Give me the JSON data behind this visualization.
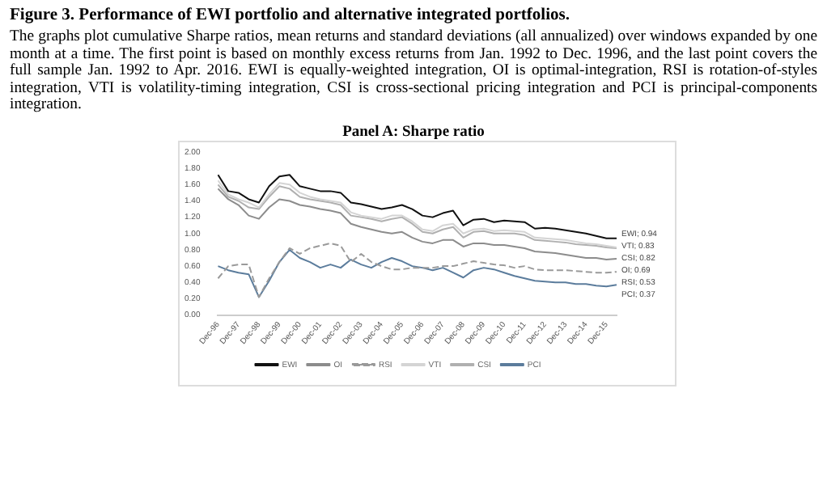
{
  "chart_data": {
    "type": "line",
    "title": "Figure 3. Performance of EWI portfolio and alternative integrated portfolios.",
    "subtitle": "The graphs plot cumulative Sharpe ratios, mean returns and standard deviations (all annualized) over windows expanded by one month at a time. The first point is based on monthly excess returns from Jan. 1992 to Dec. 1996, and the last point covers the full sample Jan. 1992 to Apr. 2016. EWI is equally-weighted integration, OI is optimal-integration, RSI is rotation-of-styles integration, VTI is volatility-timing integration, CSI is cross-sectional pricing integration and PCI is principal-components integration.",
    "categories": [
      "Dec-96",
      null,
      "Dec-97",
      null,
      "Dec-98",
      null,
      "Dec-99",
      null,
      "Dec-00",
      null,
      "Dec-01",
      null,
      "Dec-02",
      null,
      "Dec-03",
      null,
      "Dec-04",
      null,
      "Dec-05",
      null,
      "Dec-06",
      null,
      "Dec-07",
      null,
      "Dec-08",
      null,
      "Dec-09",
      null,
      "Dec-10",
      null,
      "Dec-11",
      null,
      "Dec-12",
      null,
      "Dec-13",
      null,
      "Dec-14",
      null,
      "Dec-15",
      null
    ],
    "series": [
      {
        "name": "EWI",
        "color": "#111111",
        "values": [
          1.72,
          1.52,
          1.5,
          1.42,
          1.38,
          1.58,
          1.7,
          1.72,
          1.58,
          1.55,
          1.52,
          1.52,
          1.5,
          1.38,
          1.36,
          1.33,
          1.3,
          1.32,
          1.35,
          1.3,
          1.22,
          1.2,
          1.25,
          1.28,
          1.1,
          1.17,
          1.18,
          1.14,
          1.16,
          1.15,
          1.14,
          1.06,
          1.07,
          1.06,
          1.04,
          1.02,
          1.0,
          0.97,
          0.94,
          0.94
        ]
      },
      {
        "name": "OI",
        "color": "#8c8c8c",
        "values": [
          1.55,
          1.42,
          1.35,
          1.22,
          1.18,
          1.32,
          1.42,
          1.4,
          1.35,
          1.33,
          1.3,
          1.28,
          1.25,
          1.12,
          1.08,
          1.05,
          1.02,
          1.0,
          1.02,
          0.95,
          0.9,
          0.88,
          0.92,
          0.92,
          0.84,
          0.88,
          0.88,
          0.86,
          0.86,
          0.84,
          0.82,
          0.78,
          0.77,
          0.76,
          0.74,
          0.72,
          0.7,
          0.7,
          0.68,
          0.69
        ]
      },
      {
        "name": "RSI",
        "color": "#9a9a9a",
        "line_style": "dashed",
        "values": [
          0.45,
          0.6,
          0.62,
          0.62,
          0.22,
          0.45,
          0.65,
          0.82,
          0.75,
          0.82,
          0.85,
          0.88,
          0.85,
          0.65,
          0.75,
          0.65,
          0.6,
          0.56,
          0.56,
          0.58,
          0.58,
          0.58,
          0.6,
          0.6,
          0.63,
          0.66,
          0.64,
          0.62,
          0.61,
          0.58,
          0.6,
          0.56,
          0.55,
          0.55,
          0.55,
          0.54,
          0.53,
          0.52,
          0.52,
          0.53
        ]
      },
      {
        "name": "VTI",
        "color": "#d4d4d4",
        "values": [
          1.65,
          1.48,
          1.42,
          1.38,
          1.32,
          1.48,
          1.62,
          1.6,
          1.5,
          1.45,
          1.42,
          1.4,
          1.38,
          1.26,
          1.22,
          1.2,
          1.18,
          1.22,
          1.22,
          1.15,
          1.05,
          1.03,
          1.1,
          1.12,
          1.0,
          1.05,
          1.06,
          1.03,
          1.04,
          1.03,
          1.02,
          0.95,
          0.94,
          0.93,
          0.92,
          0.9,
          0.88,
          0.87,
          0.85,
          0.83
        ]
      },
      {
        "name": "CSI",
        "color": "#b0b0b0",
        "values": [
          1.6,
          1.45,
          1.4,
          1.32,
          1.3,
          1.45,
          1.58,
          1.55,
          1.45,
          1.42,
          1.4,
          1.38,
          1.35,
          1.22,
          1.2,
          1.18,
          1.15,
          1.18,
          1.2,
          1.12,
          1.02,
          1.0,
          1.05,
          1.08,
          0.95,
          1.02,
          1.03,
          1.0,
          1.0,
          1.0,
          0.98,
          0.92,
          0.91,
          0.9,
          0.89,
          0.87,
          0.86,
          0.85,
          0.83,
          0.82
        ]
      },
      {
        "name": "PCI",
        "color": "#5b7c9c",
        "values": [
          0.6,
          0.55,
          0.52,
          0.5,
          0.22,
          0.42,
          0.65,
          0.8,
          0.7,
          0.65,
          0.58,
          0.62,
          0.58,
          0.68,
          0.62,
          0.58,
          0.65,
          0.7,
          0.66,
          0.6,
          0.58,
          0.55,
          0.58,
          0.52,
          0.46,
          0.55,
          0.58,
          0.56,
          0.52,
          0.48,
          0.45,
          0.42,
          0.41,
          0.4,
          0.4,
          0.38,
          0.38,
          0.36,
          0.35,
          0.37
        ]
      }
    ],
    "ylim": [
      0,
      2
    ],
    "yticks": [
      {
        "value": 0,
        "label": "0.00"
      },
      {
        "value": 0.2,
        "label": "0.20"
      },
      {
        "value": 0.4,
        "label": "0.40"
      },
      {
        "value": 0.6,
        "label": "0.60"
      },
      {
        "value": 0.8,
        "label": "0.80"
      },
      {
        "value": 1,
        "label": "1.00"
      },
      {
        "value": 1.2,
        "label": "1.20"
      },
      {
        "value": 1.4,
        "label": "1.40"
      },
      {
        "value": 1.6,
        "label": "1.60"
      },
      {
        "value": 1.8,
        "label": "1.80"
      },
      {
        "value": 2,
        "label": "2.00"
      }
    ],
    "grid": false,
    "legend": "bottom",
    "marker": "none",
    "annotations": [
      "Panel A: Sharpe ratio",
      "EWI; 0.94",
      "VTI; 0.83",
      "CSI; 0.82",
      "OI; 0.69",
      "RSI; 0.53",
      "PCI; 0.37"
    ]
  }
}
